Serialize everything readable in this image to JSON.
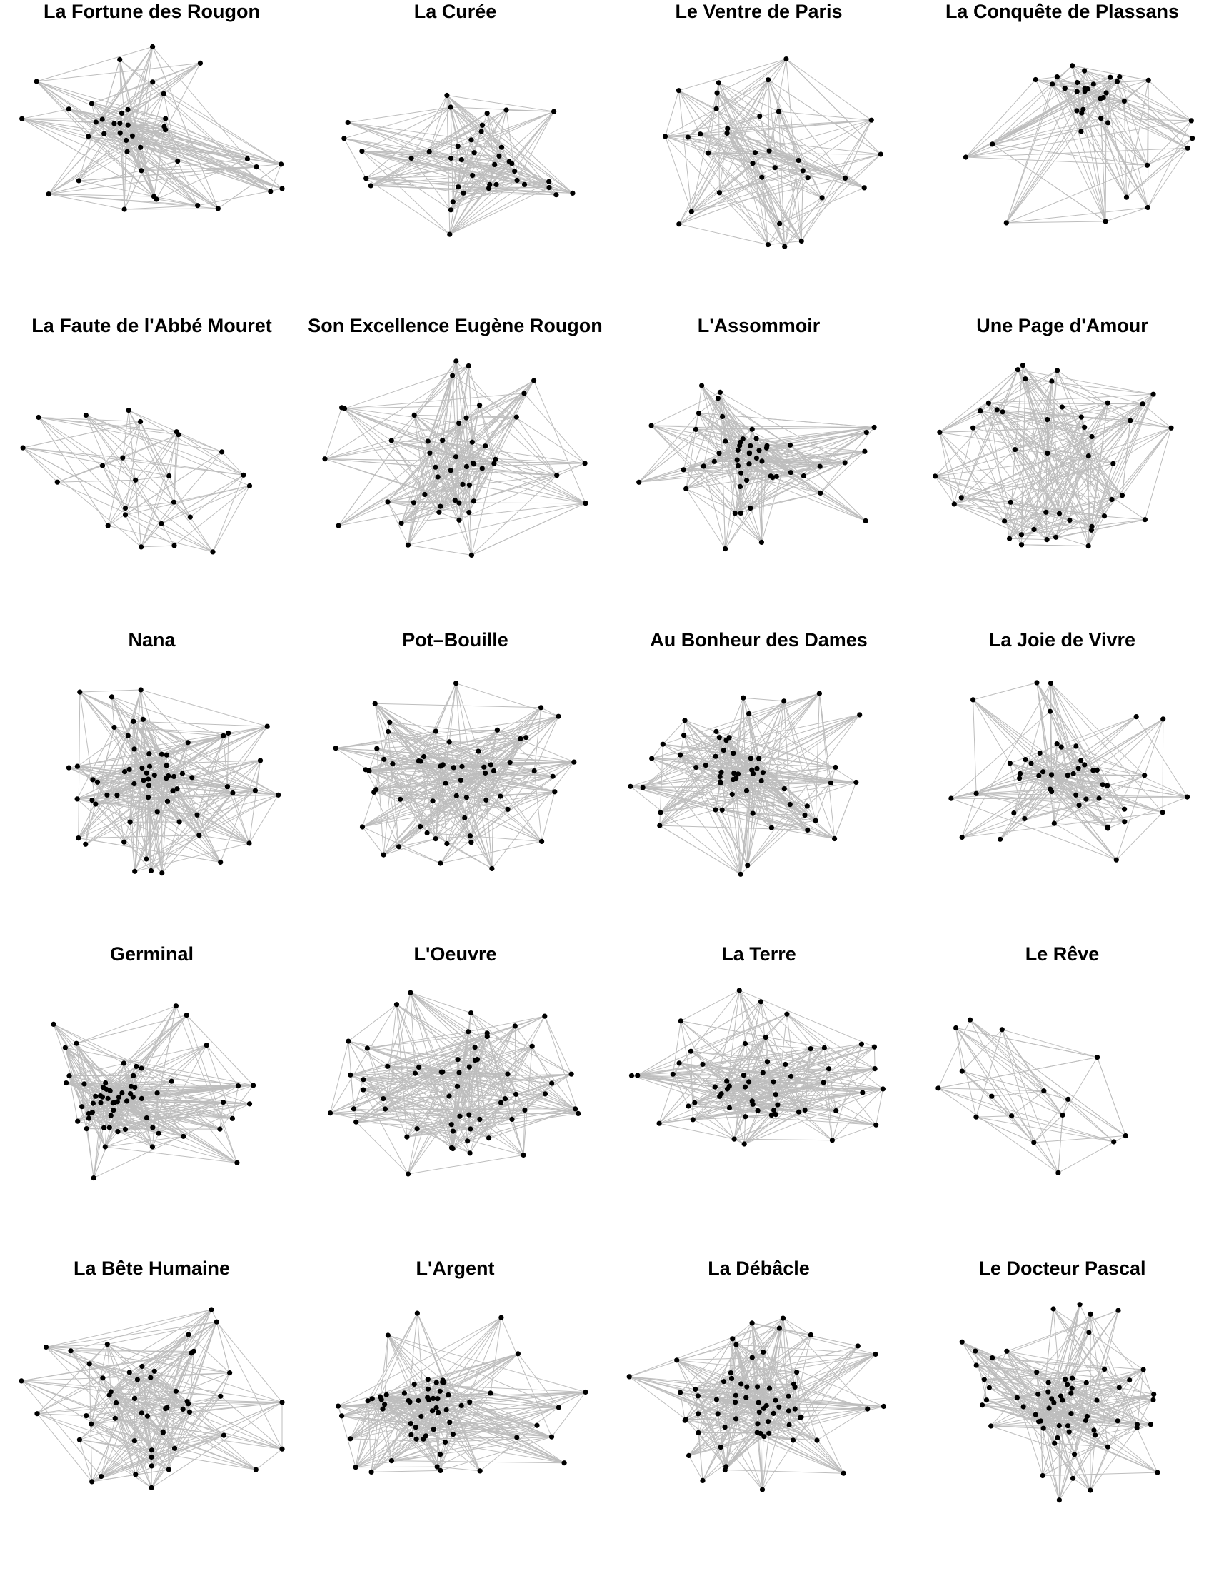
{
  "figure": {
    "edge_color": "#bdbdbd",
    "node_color": "#000000",
    "background": "#ffffff"
  },
  "panels": [
    {
      "title": "La Fortune des Rougon",
      "seed": 11,
      "nodes": 40,
      "profile": "wide"
    },
    {
      "title": "La Curée",
      "seed": 23,
      "nodes": 40,
      "profile": "right-dense"
    },
    {
      "title": "Le Ventre de Paris",
      "seed": 37,
      "nodes": 34,
      "profile": "scattered"
    },
    {
      "title": "La Conquête de Plassans",
      "seed": 41,
      "nodes": 36,
      "profile": "top-dense"
    },
    {
      "title": "La Faute de l'Abbé Mouret",
      "seed": 53,
      "nodes": 24,
      "profile": "sparse"
    },
    {
      "title": "Son Excellence Eugène Rougon",
      "seed": 67,
      "nodes": 48,
      "profile": "wide"
    },
    {
      "title": "L'Assommoir",
      "seed": 71,
      "nodes": 52,
      "profile": "dense"
    },
    {
      "title": "Une Page d'Amour",
      "seed": 83,
      "nodes": 46,
      "profile": "scattered"
    },
    {
      "title": "Nana",
      "seed": 97,
      "nodes": 64,
      "profile": "dense"
    },
    {
      "title": "Pot–Bouille",
      "seed": 101,
      "nodes": 58,
      "profile": "dense"
    },
    {
      "title": "Au Bonheur des Dames",
      "seed": 113,
      "nodes": 56,
      "profile": "left-dense"
    },
    {
      "title": "La Joie de Vivre",
      "seed": 127,
      "nodes": 48,
      "profile": "hub"
    },
    {
      "title": "Germinal",
      "seed": 131,
      "nodes": 62,
      "profile": "left-dense"
    },
    {
      "title": "L'Oeuvre",
      "seed": 149,
      "nodes": 58,
      "profile": "scattered"
    },
    {
      "title": "La Terre",
      "seed": 157,
      "nodes": 56,
      "profile": "dense"
    },
    {
      "title": "Le Rêve",
      "seed": 163,
      "nodes": 16,
      "profile": "sparse"
    },
    {
      "title": "La Bête Humaine",
      "seed": 173,
      "nodes": 52,
      "profile": "wide"
    },
    {
      "title": "L'Argent",
      "seed": 181,
      "nodes": 62,
      "profile": "left-dense"
    },
    {
      "title": "La Débâcle",
      "seed": 191,
      "nodes": 66,
      "profile": "dense"
    },
    {
      "title": "Le Docteur Pascal",
      "seed": 199,
      "nodes": 64,
      "profile": "hub"
    }
  ]
}
